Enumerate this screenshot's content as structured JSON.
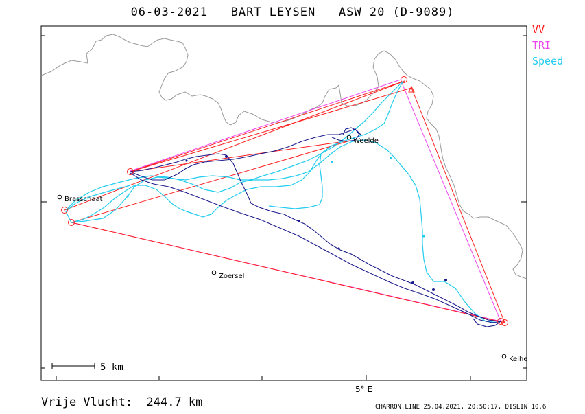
{
  "title": "06-03-2021   BART LEYSEN   ASW 20 (D-9089)",
  "legend": [
    {
      "label": "VV",
      "color": "#ff2020"
    },
    {
      "label": "TRI",
      "color": "#ee44ee"
    },
    {
      "label": "Speed",
      "color": "#22ccee"
    }
  ],
  "places": {
    "brasschaat": "Brasschaat",
    "weelde": "Weelde",
    "zoersel": "Zoersel",
    "keihe": "Keihe"
  },
  "scale_label": "5  km",
  "axis_label": "5° E",
  "footer_left": "Vrije Vlucht:  244.7 km",
  "footer_right": "CHARRON.LINE 25.04.2021, 20:50:17, DISLIN 10.6",
  "colors": {
    "vv": "#ff2020",
    "tri": "#ee44ee",
    "speed": "#22ccee",
    "track": "#1a1a8c",
    "border": "#9a9a9a"
  }
}
